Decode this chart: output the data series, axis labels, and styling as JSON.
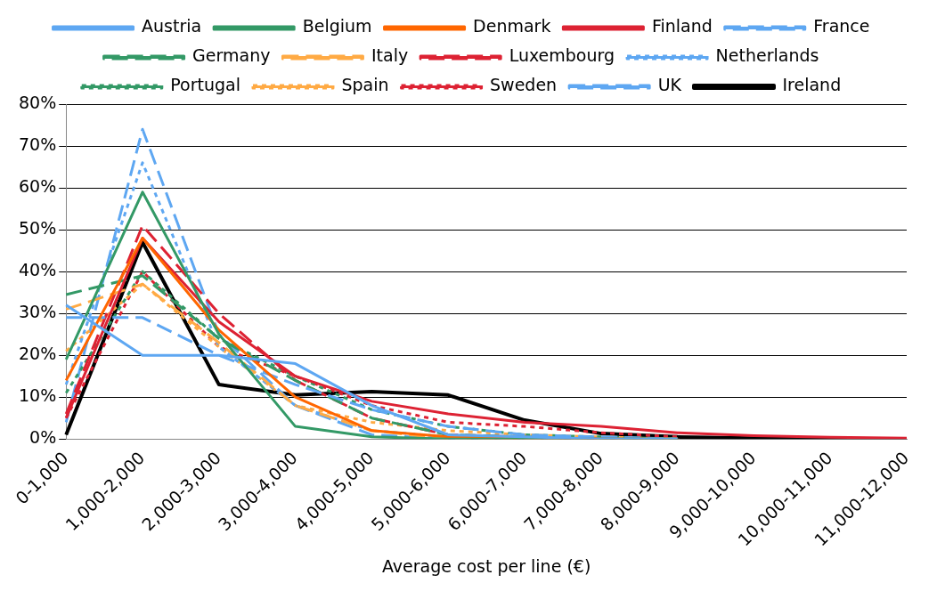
{
  "chart_data": {
    "type": "line",
    "xlabel": "Average cost per line (€)",
    "categories": [
      "0-1,000",
      "1,000-2,000",
      "2,000-3,000",
      "3,000-4,000",
      "4,000-5,000",
      "5,000-6,000",
      "6,000-7,000",
      "7,000-8,000",
      "8,000-9,000",
      "9,000-10,000",
      "10,000-11,000",
      "11,000-12,000"
    ],
    "ylim": [
      0,
      80
    ],
    "yticks": [
      {
        "value": 0,
        "label": "0%"
      },
      {
        "value": 10,
        "label": "10%"
      },
      {
        "value": 20,
        "label": "20%"
      },
      {
        "value": 30,
        "label": "30%"
      },
      {
        "value": 40,
        "label": "40%"
      },
      {
        "value": 50,
        "label": "50%"
      },
      {
        "value": 60,
        "label": "60%"
      },
      {
        "value": 70,
        "label": "70%"
      },
      {
        "value": 80,
        "label": "80%"
      }
    ],
    "grid": "y",
    "legend": "top",
    "marker": "none",
    "series": [
      {
        "name": "Austria",
        "color": "#5ea7f2",
        "line_style": "solid",
        "values": [
          32,
          20,
          20,
          18,
          8,
          1,
          0.5,
          0,
          0,
          null,
          null,
          null
        ]
      },
      {
        "name": "Belgium",
        "color": "#339966",
        "line_style": "solid",
        "values": [
          19,
          59,
          25,
          3,
          0.5,
          0,
          0,
          0,
          0,
          null,
          null,
          null
        ]
      },
      {
        "name": "Denmark",
        "color": "#ff6600",
        "line_style": "solid",
        "values": [
          14,
          48,
          26,
          10,
          2,
          0.5,
          0,
          0,
          0,
          null,
          null,
          null
        ]
      },
      {
        "name": "Finland",
        "color": "#dd2233",
        "line_style": "solid",
        "values": [
          5,
          48,
          28,
          15,
          9,
          6,
          4,
          3,
          1.5,
          0.8,
          0.4,
          0.2
        ]
      },
      {
        "name": "France",
        "color": "#5ea7f2",
        "line_style": "dashed",
        "values": [
          29,
          29,
          20,
          13,
          7,
          3,
          1,
          0.5,
          0,
          null,
          null,
          null
        ]
      },
      {
        "name": "Germany",
        "color": "#339966",
        "line_style": "dashed",
        "values": [
          34.5,
          39,
          24,
          14,
          5,
          1,
          0.5,
          0,
          0,
          null,
          null,
          null
        ]
      },
      {
        "name": "Italy",
        "color": "#ffaa44",
        "line_style": "dashed",
        "values": [
          31,
          37,
          23,
          8,
          2,
          0,
          0,
          0,
          0,
          null,
          null,
          null
        ]
      },
      {
        "name": "Luxembourg",
        "color": "#dd2233",
        "line_style": "dashed",
        "values": [
          6,
          51,
          30,
          14,
          5,
          1,
          0.5,
          0,
          0,
          null,
          null,
          null
        ]
      },
      {
        "name": "Netherlands",
        "color": "#5ea7f2",
        "line_style": "dotted",
        "values": [
          13,
          66,
          22,
          8,
          2,
          0.5,
          0,
          0,
          0,
          null,
          null,
          null
        ]
      },
      {
        "name": "Portugal",
        "color": "#339966",
        "line_style": "dotted",
        "values": [
          11,
          40,
          24,
          15,
          7,
          3,
          1,
          0.5,
          0,
          null,
          null,
          null
        ]
      },
      {
        "name": "Spain",
        "color": "#ffaa44",
        "line_style": "dotted",
        "values": [
          21,
          37,
          22,
          8,
          4,
          2,
          1,
          0.5,
          0,
          null,
          null,
          null
        ]
      },
      {
        "name": "Sweden",
        "color": "#dd2233",
        "line_style": "dotted",
        "values": [
          5,
          40,
          22,
          15,
          8,
          4,
          3,
          1.5,
          0.5,
          null,
          null,
          null
        ]
      },
      {
        "name": "UK",
        "color": "#5ea7f2",
        "line_style": "dashed",
        "values": [
          4,
          74,
          25,
          8,
          1,
          0,
          0,
          0,
          0,
          null,
          null,
          null
        ]
      },
      {
        "name": "Ireland",
        "color": "#000000",
        "line_style": "solid",
        "values": [
          1,
          47,
          13,
          10.5,
          11.3,
          10.5,
          4.5,
          1.3,
          0.5,
          0.2,
          0.1,
          0
        ]
      }
    ]
  }
}
